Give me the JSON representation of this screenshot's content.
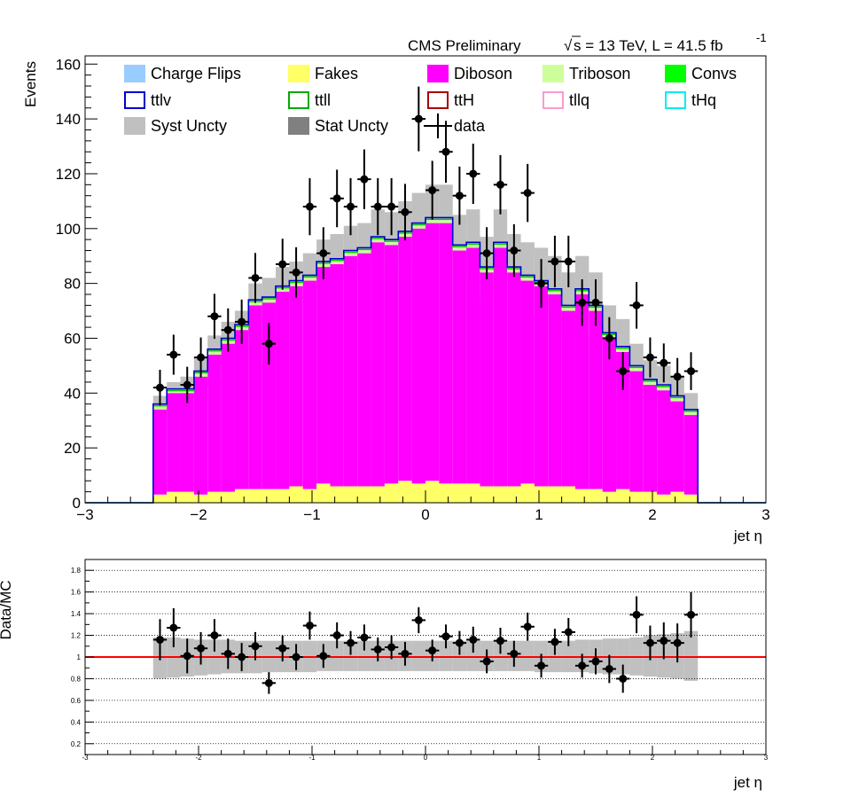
{
  "header": {
    "left": "CMS Preliminary",
    "sqrt": "√",
    "energy": "s = 13 TeV, L = 41.5 fb",
    "lumi_exp": "-1"
  },
  "chart_data": [
    {
      "type": "bar",
      "title": "",
      "xlabel": "jet  η",
      "ylabel": "Events",
      "xlim": [
        -3,
        3
      ],
      "ylim": [
        0,
        163
      ],
      "bin_width": 0.12,
      "range": [
        -2.4,
        2.4
      ],
      "grid": false,
      "legend_placement": "top",
      "x_ticks": [
        -3,
        -2,
        -1,
        0,
        1,
        2,
        3
      ],
      "x_tick_labels": [
        "−3",
        "−2",
        "−1",
        "0",
        "1",
        "2",
        "3"
      ],
      "y_ticks": [
        0,
        20,
        40,
        60,
        80,
        100,
        120,
        140,
        160
      ],
      "legend": [
        {
          "label": "Charge Flips",
          "style": "fill",
          "color": "#99ccff"
        },
        {
          "label": "Fakes",
          "style": "fill",
          "color": "#ffff66"
        },
        {
          "label": "Diboson",
          "style": "fill",
          "color": "#ff00ff"
        },
        {
          "label": "Triboson",
          "style": "fill",
          "color": "#ccff99"
        },
        {
          "label": "Convs",
          "style": "fill",
          "color": "#00ff00"
        },
        {
          "label": "ttlv",
          "style": "line",
          "color": "#0000cc"
        },
        {
          "label": "ttll",
          "style": "line",
          "color": "#00aa00"
        },
        {
          "label": "ttH",
          "style": "line",
          "color": "#aa0000"
        },
        {
          "label": "tllq",
          "style": "line",
          "color": "#ff99cc"
        },
        {
          "label": "tHq",
          "style": "line",
          "color": "#00eeee"
        },
        {
          "label": "Syst Uncty",
          "style": "fill",
          "color": "#c0c0c0"
        },
        {
          "label": "Stat Uncty",
          "style": "fill",
          "color": "#808080"
        },
        {
          "label": "data",
          "style": "marker",
          "color": "#000000"
        }
      ],
      "x": [
        -2.34,
        -2.22,
        -2.1,
        -1.98,
        -1.86,
        -1.74,
        -1.62,
        -1.5,
        -1.38,
        -1.26,
        -1.14,
        -1.02,
        -0.9,
        -0.78,
        -0.66,
        -0.54,
        -0.42,
        -0.3,
        -0.18,
        -0.06,
        0.06,
        0.18,
        0.3,
        0.42,
        0.54,
        0.66,
        0.78,
        0.9,
        1.02,
        1.14,
        1.26,
        1.38,
        1.5,
        1.62,
        1.74,
        1.86,
        1.98,
        2.1,
        2.22,
        2.34
      ],
      "series": [
        {
          "name": "Fakes",
          "color": "#ffff66",
          "values": [
            3,
            4,
            4,
            3,
            4,
            4,
            5,
            5,
            5,
            5,
            6,
            5,
            7,
            6,
            6,
            6,
            6,
            7,
            8,
            7,
            8,
            7,
            7,
            7,
            6,
            6,
            6,
            7,
            6,
            6,
            6,
            5,
            5,
            4,
            5,
            4,
            4,
            3,
            4,
            3
          ]
        },
        {
          "name": "Diboson",
          "color": "#ff00ff",
          "values": [
            31,
            36,
            36,
            43,
            50,
            54,
            58,
            67,
            68,
            72,
            73,
            76,
            79,
            81,
            84,
            85,
            89,
            87,
            89,
            93,
            94,
            95,
            85,
            86,
            78,
            87,
            78,
            74,
            73,
            70,
            64,
            71,
            65,
            56,
            50,
            44,
            39,
            38,
            33,
            29
          ]
        },
        {
          "name": "Triboson",
          "color": "#ccff99",
          "values": [
            1.5,
            1.5,
            1.5,
            1.5,
            1.5,
            1.5,
            1.5,
            1.5,
            1.5,
            1.5,
            1.5,
            1.5,
            1.5,
            1.5,
            1.5,
            1.5,
            1.5,
            1.5,
            1.5,
            1.5,
            1.5,
            1.5,
            1.5,
            1.5,
            1.5,
            1.5,
            1.5,
            1.5,
            1.5,
            1.5,
            1.5,
            1.5,
            1.5,
            1.5,
            1.5,
            1.5,
            1.5,
            1.5,
            1.5,
            1.5
          ]
        }
      ],
      "mc_total": [
        36,
        41.5,
        41.5,
        48,
        56,
        60,
        65,
        74,
        75,
        79,
        81,
        83,
        88,
        89,
        92,
        93,
        97,
        96,
        99,
        102,
        104,
        104,
        94,
        95,
        86,
        95,
        86,
        83,
        81,
        78,
        72,
        78,
        72,
        62,
        57,
        50,
        45,
        43,
        39,
        34
      ],
      "syst_band": [
        [
          32,
          39
        ],
        [
          38,
          44
        ],
        [
          38,
          46
        ],
        [
          43,
          53
        ],
        [
          51,
          61
        ],
        [
          56,
          66
        ],
        [
          60,
          70
        ],
        [
          68,
          80
        ],
        [
          69,
          82
        ],
        [
          73,
          86
        ],
        [
          74,
          88
        ],
        [
          76,
          91
        ],
        [
          80,
          96
        ],
        [
          81,
          98
        ],
        [
          84,
          101
        ],
        [
          84,
          102
        ],
        [
          87,
          107
        ],
        [
          86,
          106
        ],
        [
          89,
          110
        ],
        [
          92,
          113
        ],
        [
          92,
          116
        ],
        [
          92,
          116
        ],
        [
          82,
          105
        ],
        [
          83,
          107
        ],
        [
          74,
          97
        ],
        [
          82,
          107
        ],
        [
          74,
          98
        ],
        [
          71,
          95
        ],
        [
          69,
          93
        ],
        [
          66,
          90
        ],
        [
          60,
          84
        ],
        [
          66,
          90
        ],
        [
          60,
          84
        ],
        [
          52,
          72
        ],
        [
          48,
          67
        ],
        [
          42,
          58
        ],
        [
          38,
          52
        ],
        [
          36,
          50
        ],
        [
          32,
          46
        ],
        [
          28,
          40
        ]
      ],
      "data": [
        42,
        54,
        43,
        53,
        68,
        63,
        66,
        82,
        58,
        87,
        84,
        108,
        91,
        111,
        108,
        118,
        108,
        108,
        106,
        140,
        114,
        128,
        112,
        120,
        91,
        116,
        92,
        113,
        80,
        88,
        88,
        73,
        73,
        60,
        48,
        72,
        53,
        51,
        46,
        48
      ],
      "data_err": [
        6.5,
        7.3,
        6.6,
        7.3,
        8.2,
        7.9,
        8.1,
        9.1,
        7.6,
        9.3,
        9.2,
        10.4,
        9.5,
        10.5,
        10.4,
        10.9,
        10.4,
        10.4,
        10.3,
        11.8,
        10.7,
        11.3,
        10.6,
        11,
        9.5,
        10.8,
        9.6,
        10.6,
        8.9,
        9.4,
        9.4,
        8.5,
        8.5,
        7.7,
        6.9,
        8.5,
        7.3,
        7.1,
        6.8,
        6.9
      ]
    },
    {
      "type": "scatter",
      "title": "",
      "xlabel": "jet  η",
      "ylabel": "Data/MC",
      "xlim": [
        -3,
        3
      ],
      "ylim": [
        0.1,
        1.9
      ],
      "grid": true,
      "reference_line": 1,
      "reference_color": "#ff0000",
      "x_ticks": [
        -3,
        -2,
        -1,
        0,
        1,
        2,
        3
      ],
      "x_tick_labels": [
        "-3",
        "-2",
        "-1",
        "0",
        "1",
        "2",
        "3"
      ],
      "y_ticks": [
        0.2,
        0.4,
        0.6,
        0.8,
        1,
        1.2,
        1.4,
        1.6,
        1.8
      ],
      "x": [
        -2.34,
        -2.22,
        -2.1,
        -1.98,
        -1.86,
        -1.74,
        -1.62,
        -1.5,
        -1.38,
        -1.26,
        -1.14,
        -1.02,
        -0.9,
        -0.78,
        -0.66,
        -0.54,
        -0.42,
        -0.3,
        -0.18,
        -0.06,
        0.06,
        0.18,
        0.3,
        0.42,
        0.54,
        0.66,
        0.78,
        0.9,
        1.02,
        1.14,
        1.26,
        1.38,
        1.5,
        1.62,
        1.74,
        1.86,
        1.98,
        2.1,
        2.22,
        2.34
      ],
      "values": [
        1.16,
        1.27,
        1.01,
        1.08,
        1.2,
        1.03,
        1.0,
        1.1,
        0.76,
        1.08,
        1.0,
        1.29,
        1.01,
        1.2,
        1.13,
        1.18,
        1.07,
        1.09,
        1.03,
        1.34,
        1.06,
        1.19,
        1.13,
        1.16,
        0.96,
        1.15,
        1.03,
        1.28,
        0.92,
        1.14,
        1.23,
        0.92,
        0.96,
        0.89,
        0.8,
        1.39,
        1.13,
        1.15,
        1.13,
        1.39
      ],
      "errors": [
        0.19,
        0.18,
        0.16,
        0.15,
        0.15,
        0.14,
        0.13,
        0.13,
        0.1,
        0.12,
        0.12,
        0.13,
        0.11,
        0.12,
        0.11,
        0.12,
        0.11,
        0.11,
        0.11,
        0.12,
        0.1,
        0.11,
        0.11,
        0.12,
        0.11,
        0.12,
        0.12,
        0.13,
        0.11,
        0.12,
        0.13,
        0.11,
        0.12,
        0.13,
        0.13,
        0.17,
        0.16,
        0.17,
        0.18,
        0.21
      ],
      "band": [
        [
          0.8,
          1.18
        ],
        [
          0.81,
          1.18
        ],
        [
          0.82,
          1.17
        ],
        [
          0.83,
          1.16
        ],
        [
          0.84,
          1.16
        ],
        [
          0.85,
          1.16
        ],
        [
          0.85,
          1.15
        ],
        [
          0.85,
          1.15
        ],
        [
          0.86,
          1.15
        ],
        [
          0.86,
          1.15
        ],
        [
          0.86,
          1.15
        ],
        [
          0.86,
          1.15
        ],
        [
          0.87,
          1.15
        ],
        [
          0.87,
          1.15
        ],
        [
          0.87,
          1.15
        ],
        [
          0.87,
          1.15
        ],
        [
          0.87,
          1.15
        ],
        [
          0.87,
          1.15
        ],
        [
          0.87,
          1.15
        ],
        [
          0.87,
          1.15
        ],
        [
          0.87,
          1.15
        ],
        [
          0.87,
          1.15
        ],
        [
          0.87,
          1.15
        ],
        [
          0.87,
          1.15
        ],
        [
          0.87,
          1.15
        ],
        [
          0.87,
          1.15
        ],
        [
          0.87,
          1.15
        ],
        [
          0.87,
          1.15
        ],
        [
          0.86,
          1.15
        ],
        [
          0.86,
          1.15
        ],
        [
          0.86,
          1.15
        ],
        [
          0.86,
          1.16
        ],
        [
          0.85,
          1.16
        ],
        [
          0.84,
          1.17
        ],
        [
          0.84,
          1.17
        ],
        [
          0.83,
          1.18
        ],
        [
          0.82,
          1.2
        ],
        [
          0.81,
          1.21
        ],
        [
          0.8,
          1.22
        ],
        [
          0.78,
          1.24
        ]
      ]
    }
  ]
}
